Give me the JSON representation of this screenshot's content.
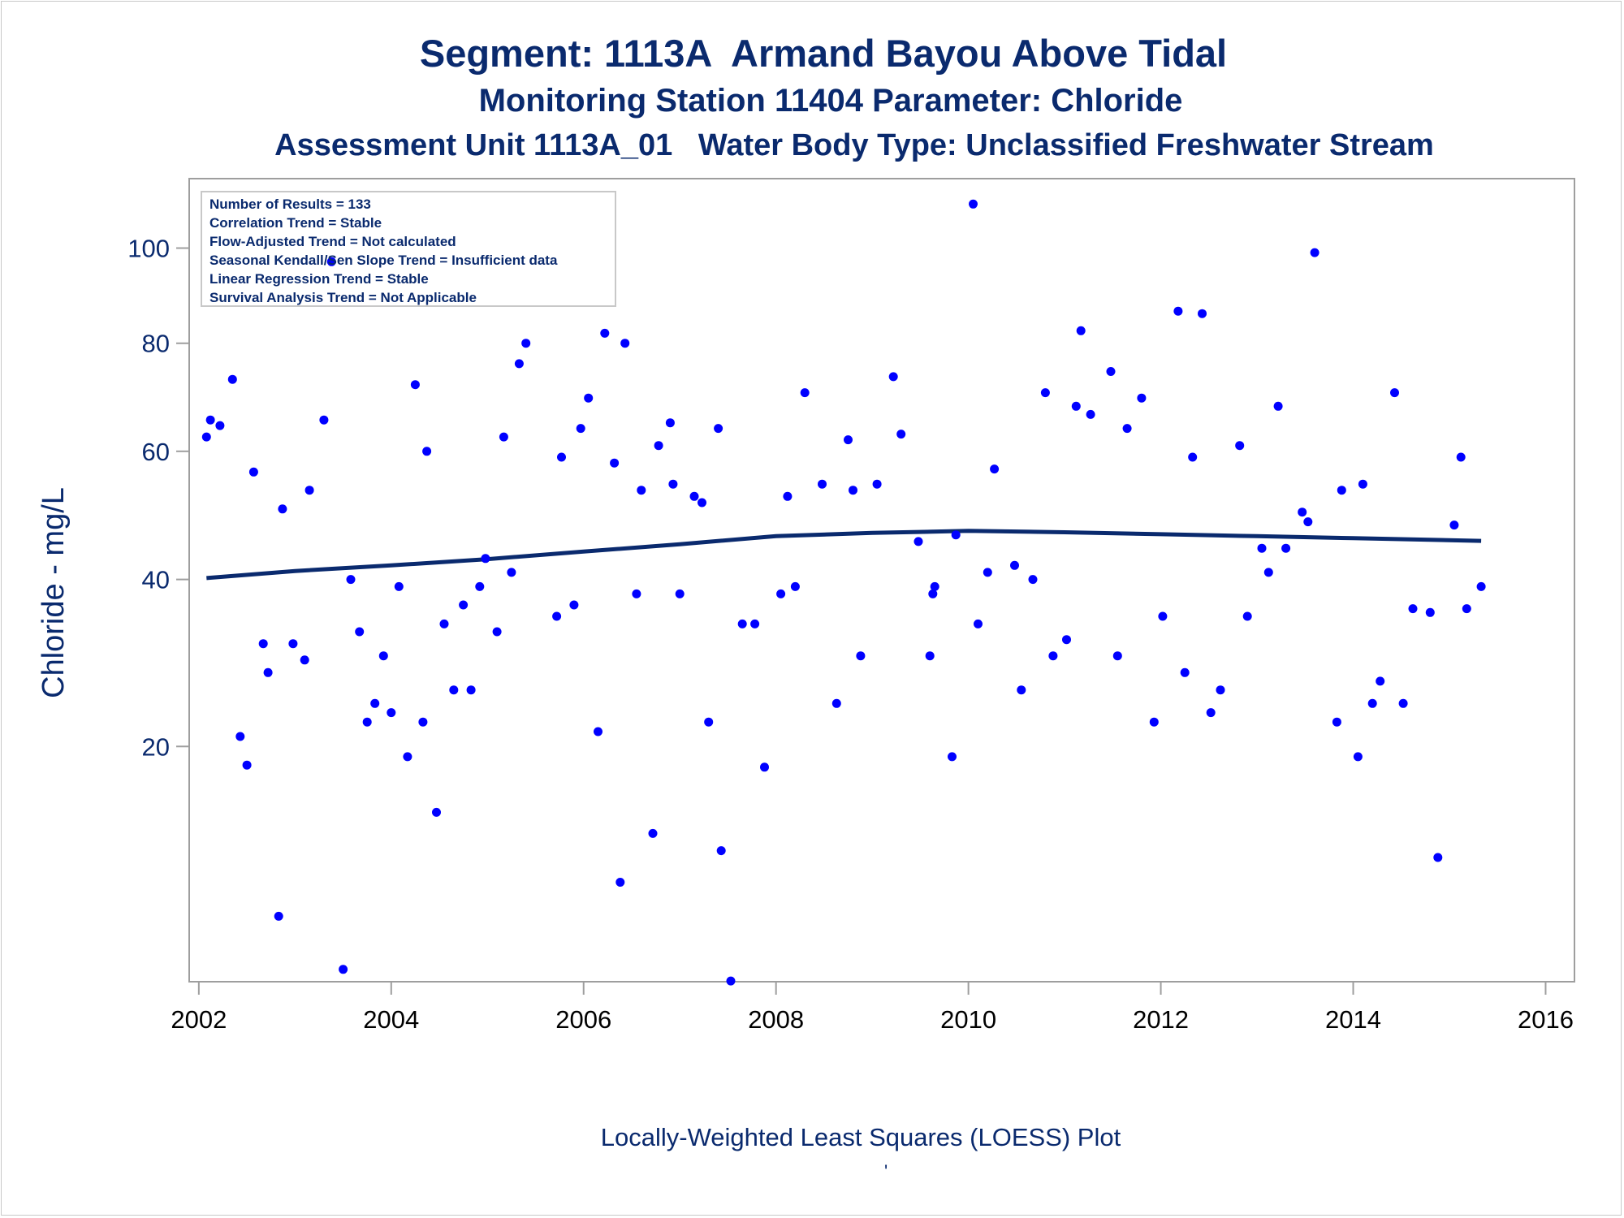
{
  "titles": {
    "line1": "Segment: 1113A  Armand Bayou Above Tidal",
    "line2": "Monitoring Station 11404 Parameter: Chloride",
    "line3": "Assessment Unit 1113A_01   Water Body Type: Unclassified Freshwater Stream"
  },
  "stats_box": {
    "lines": [
      "Number of Results = 133",
      "Correlation Trend = Stable",
      "Flow-Adjusted Trend = Not calculated",
      "Seasonal Kendall/Sen Slope Trend = Insufficient data",
      "Linear Regression Trend = Stable",
      "Survival Analysis Trend = Not Applicable"
    ]
  },
  "footnote": "Locally-Weighted Least Squares (LOESS) Plot",
  "footnote_mark": "'",
  "colors": {
    "points": "#0000ff",
    "loess": "#0a2a6e",
    "text": "#0a2a6e",
    "axis": "#9e9e9e"
  },
  "chart_data": {
    "type": "scatter",
    "title": "Segment: 1113A  Armand Bayou Above Tidal",
    "xlabel": "",
    "ylabel": "Chloride - mg/L",
    "x_ticks": [
      2002,
      2004,
      2006,
      2008,
      2010,
      2012,
      2014,
      2016
    ],
    "y_ticks": [
      20,
      40,
      60,
      80,
      100
    ],
    "xlim": [
      2001.9,
      2016.3
    ],
    "ylim": [
      3.47,
      116
    ],
    "y_scale": "sqrt",
    "grid": false,
    "stats_box_placement": "top-left",
    "series": [
      {
        "name": "",
        "type": "scatter",
        "points": [
          [
            2002.08,
            62.5
          ],
          [
            2002.12,
            65.5
          ],
          [
            2002.22,
            64.5
          ],
          [
            2002.35,
            73
          ],
          [
            2002.43,
            21
          ],
          [
            2002.5,
            18.2
          ],
          [
            2002.57,
            56.5
          ],
          [
            2002.67,
            31.5
          ],
          [
            2002.72,
            28
          ],
          [
            2002.83,
            6.7
          ],
          [
            2002.87,
            50.5
          ],
          [
            2002.98,
            31.5
          ],
          [
            2003.1,
            29.5
          ],
          [
            2003.15,
            53.5
          ],
          [
            2003.3,
            65.5
          ],
          [
            2003.38,
            97
          ],
          [
            2003.5,
            4.0
          ],
          [
            2003.58,
            40
          ],
          [
            2003.67,
            33
          ],
          [
            2003.75,
            22.5
          ],
          [
            2003.83,
            24.5
          ],
          [
            2003.92,
            30
          ],
          [
            2004.0,
            23.5
          ],
          [
            2004.08,
            39
          ],
          [
            2004.17,
            19
          ],
          [
            2004.25,
            72
          ],
          [
            2004.33,
            22.5
          ],
          [
            2004.37,
            60
          ],
          [
            2004.47,
            14
          ],
          [
            2004.55,
            34
          ],
          [
            2004.65,
            26
          ],
          [
            2004.75,
            36.5
          ],
          [
            2004.83,
            26
          ],
          [
            2004.92,
            39
          ],
          [
            2004.98,
            43
          ],
          [
            2005.1,
            33
          ],
          [
            2005.17,
            62.5
          ],
          [
            2005.25,
            41
          ],
          [
            2005.33,
            76
          ],
          [
            2005.4,
            80
          ],
          [
            2005.72,
            35
          ],
          [
            2005.77,
            59
          ],
          [
            2005.9,
            36.5
          ],
          [
            2005.97,
            64
          ],
          [
            2006.05,
            69.5
          ],
          [
            2006.15,
            21.5
          ],
          [
            2006.22,
            82
          ],
          [
            2006.32,
            58
          ],
          [
            2006.38,
            8.8
          ],
          [
            2006.43,
            80
          ],
          [
            2006.55,
            38
          ],
          [
            2006.6,
            53.5
          ],
          [
            2006.72,
            12.3
          ],
          [
            2006.78,
            61
          ],
          [
            2006.9,
            65
          ],
          [
            2006.93,
            54.5
          ],
          [
            2007.0,
            38
          ],
          [
            2007.15,
            52.5
          ],
          [
            2007.23,
            51.5
          ],
          [
            2007.3,
            22.5
          ],
          [
            2007.4,
            64
          ],
          [
            2007.43,
            11.0
          ],
          [
            2007.53,
            3.5
          ],
          [
            2007.65,
            34
          ],
          [
            2007.78,
            34
          ],
          [
            2007.88,
            18.0
          ],
          [
            2008.05,
            38
          ],
          [
            2008.12,
            52.5
          ],
          [
            2008.2,
            39
          ],
          [
            2008.3,
            70.5
          ],
          [
            2008.48,
            54.5
          ],
          [
            2008.63,
            24.5
          ],
          [
            2008.75,
            62
          ],
          [
            2008.8,
            53.5
          ],
          [
            2008.88,
            30
          ],
          [
            2009.05,
            54.5
          ],
          [
            2009.22,
            73.5
          ],
          [
            2009.3,
            63
          ],
          [
            2009.48,
            45.5
          ],
          [
            2009.6,
            30
          ],
          [
            2009.63,
            38
          ],
          [
            2009.65,
            39
          ],
          [
            2009.83,
            19
          ],
          [
            2009.87,
            46.5
          ],
          [
            2010.05,
            110
          ],
          [
            2010.1,
            34
          ],
          [
            2010.2,
            41
          ],
          [
            2010.27,
            57
          ],
          [
            2010.48,
            42
          ],
          [
            2010.55,
            26
          ],
          [
            2010.67,
            40
          ],
          [
            2010.8,
            70.5
          ],
          [
            2010.88,
            30
          ],
          [
            2011.02,
            32
          ],
          [
            2011.12,
            68
          ],
          [
            2011.17,
            82.5
          ],
          [
            2011.27,
            66.5
          ],
          [
            2011.48,
            74.5
          ],
          [
            2011.55,
            30
          ],
          [
            2011.65,
            64
          ],
          [
            2011.8,
            69.5
          ],
          [
            2011.93,
            22.5
          ],
          [
            2012.02,
            35
          ],
          [
            2012.18,
            86.5
          ],
          [
            2012.25,
            28
          ],
          [
            2012.33,
            59
          ],
          [
            2012.43,
            86
          ],
          [
            2012.52,
            23.5
          ],
          [
            2012.62,
            26
          ],
          [
            2012.82,
            61
          ],
          [
            2012.9,
            35
          ],
          [
            2013.05,
            44.5
          ],
          [
            2013.12,
            41
          ],
          [
            2013.22,
            68
          ],
          [
            2013.3,
            44.5
          ],
          [
            2013.47,
            50
          ],
          [
            2013.53,
            48.5
          ],
          [
            2013.6,
            99
          ],
          [
            2013.83,
            22.5
          ],
          [
            2013.88,
            53.5
          ],
          [
            2014.05,
            19
          ],
          [
            2014.1,
            54.5
          ],
          [
            2014.2,
            24.5
          ],
          [
            2014.28,
            27
          ],
          [
            2014.43,
            70.5
          ],
          [
            2014.52,
            24.5
          ],
          [
            2014.62,
            36
          ],
          [
            2014.8,
            35.5
          ],
          [
            2014.88,
            10.5
          ],
          [
            2015.05,
            48
          ],
          [
            2015.12,
            59
          ],
          [
            2015.18,
            36
          ],
          [
            2015.33,
            39
          ]
        ]
      },
      {
        "name": "",
        "type": "line",
        "points": [
          [
            2002.08,
            40.2
          ],
          [
            2003.0,
            41.2
          ],
          [
            2004.0,
            42.0
          ],
          [
            2005.0,
            42.9
          ],
          [
            2006.0,
            44.0
          ],
          [
            2007.0,
            45.1
          ],
          [
            2008.0,
            46.3
          ],
          [
            2009.0,
            46.8
          ],
          [
            2010.0,
            47.1
          ],
          [
            2011.0,
            46.9
          ],
          [
            2012.0,
            46.6
          ],
          [
            2013.0,
            46.3
          ],
          [
            2014.0,
            46.0
          ],
          [
            2015.33,
            45.6
          ]
        ]
      }
    ]
  }
}
